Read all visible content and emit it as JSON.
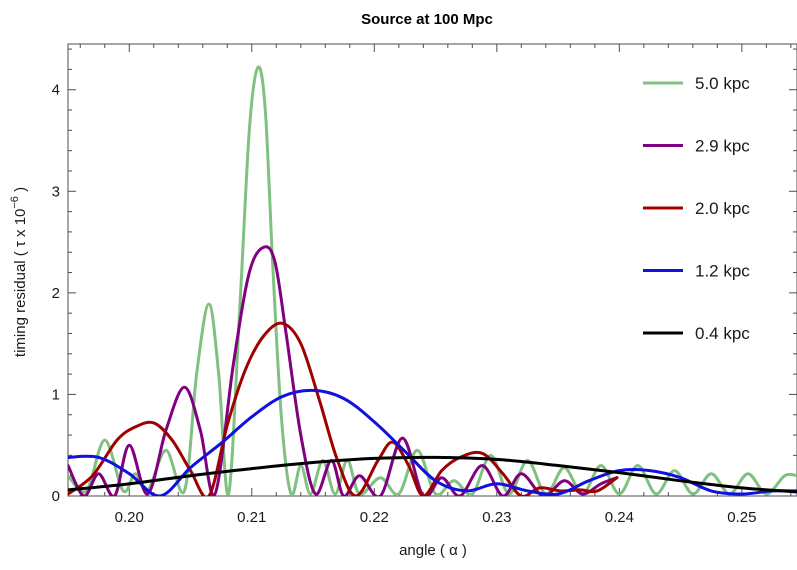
{
  "chart_data": {
    "type": "line",
    "title": "Source at 100 Mpc",
    "xlabel": "angle  ( α )",
    "ylabel": "timing residual  ( τ x 10",
    "ylabel_exponent": "−6",
    "ylabel_close": " )",
    "xlim": [
      0.195,
      0.2545
    ],
    "ylim": [
      0,
      4.45
    ],
    "x_ticks": [
      0.2,
      0.21,
      0.22,
      0.23,
      0.24,
      0.25
    ],
    "x_tick_labels": [
      "0.20",
      "0.21",
      "0.22",
      "0.23",
      "0.24",
      "0.25"
    ],
    "y_ticks": [
      0,
      1,
      2,
      3,
      4
    ],
    "y_tick_labels": [
      "0",
      "1",
      "2",
      "3",
      "4"
    ],
    "grid": false,
    "legend_position": "top-right",
    "series": [
      {
        "name": "5.0 kpc",
        "color": "#80c080",
        "x": [
          0.195,
          0.1965,
          0.198,
          0.1995,
          0.2005,
          0.2015,
          0.203,
          0.2045,
          0.2055,
          0.2065,
          0.2073,
          0.2081,
          0.209,
          0.2098,
          0.2105,
          0.2111,
          0.2117,
          0.2124,
          0.2132,
          0.214,
          0.2148,
          0.2158,
          0.2168,
          0.2178,
          0.2188,
          0.2205,
          0.222,
          0.2235,
          0.225,
          0.2265,
          0.228,
          0.2295,
          0.231,
          0.2325,
          0.234,
          0.2355,
          0.237,
          0.2385,
          0.24,
          0.2415,
          0.243,
          0.2445,
          0.246,
          0.2475,
          0.249,
          0.2505,
          0.252,
          0.2535,
          0.2545
        ],
        "y": [
          0.2,
          0.05,
          0.55,
          0.05,
          0.22,
          0.05,
          0.45,
          0.05,
          1.2,
          1.89,
          1.2,
          0.02,
          1.8,
          3.6,
          4.22,
          3.8,
          2.3,
          0.8,
          0.02,
          0.3,
          0.02,
          0.35,
          0.02,
          0.35,
          0.02,
          0.18,
          0.02,
          0.45,
          0.02,
          0.15,
          0.02,
          0.4,
          0.02,
          0.35,
          0.02,
          0.28,
          0.02,
          0.3,
          0.02,
          0.3,
          0.02,
          0.25,
          0.02,
          0.22,
          0.02,
          0.22,
          0.02,
          0.2,
          0.2
        ]
      },
      {
        "name": "2.9 kpc",
        "color": "#800080",
        "x": [
          0.195,
          0.1963,
          0.1975,
          0.1988,
          0.2,
          0.2015,
          0.203,
          0.2045,
          0.2058,
          0.207,
          0.2085,
          0.2098,
          0.211,
          0.2119,
          0.2128,
          0.214,
          0.2152,
          0.2165,
          0.2175,
          0.2188,
          0.2205,
          0.2223,
          0.224,
          0.2255,
          0.227,
          0.2288,
          0.2305,
          0.232,
          0.2338,
          0.2355,
          0.237,
          0.2385,
          0.2398
        ],
        "y": [
          0.3,
          0.0,
          0.22,
          0.0,
          0.5,
          0.02,
          0.65,
          1.07,
          0.65,
          0.02,
          1.3,
          2.2,
          2.45,
          2.3,
          1.6,
          0.6,
          0.02,
          0.35,
          0.0,
          0.2,
          0.0,
          0.57,
          0.0,
          0.18,
          0.0,
          0.3,
          0.0,
          0.22,
          0.0,
          0.15,
          0.02,
          0.12,
          0.18
        ]
      },
      {
        "name": "2.0 kpc",
        "color": "#a00000",
        "x": [
          0.195,
          0.197,
          0.199,
          0.2005,
          0.202,
          0.2035,
          0.205,
          0.2065,
          0.208,
          0.2095,
          0.211,
          0.2125,
          0.214,
          0.2155,
          0.217,
          0.2185,
          0.2203,
          0.2215,
          0.2228,
          0.224,
          0.2255,
          0.227,
          0.2288,
          0.2305,
          0.232,
          0.2335,
          0.2352,
          0.2368,
          0.2382,
          0.2398
        ],
        "y": [
          0.02,
          0.2,
          0.55,
          0.68,
          0.72,
          0.55,
          0.25,
          0.0,
          0.7,
          1.25,
          1.58,
          1.7,
          1.5,
          0.95,
          0.35,
          0.0,
          0.35,
          0.53,
          0.3,
          0.0,
          0.25,
          0.38,
          0.42,
          0.22,
          0.0,
          0.08,
          0.05,
          0.06,
          0.05,
          0.18
        ]
      },
      {
        "name": "1.2 kpc",
        "color": "#1010e0",
        "x": [
          0.195,
          0.1975,
          0.2,
          0.2025,
          0.205,
          0.2075,
          0.21,
          0.2125,
          0.215,
          0.2175,
          0.22,
          0.2225,
          0.225,
          0.2275,
          0.23,
          0.2325,
          0.235,
          0.2375,
          0.24,
          0.2425,
          0.245,
          0.2475,
          0.25,
          0.2525,
          0.2545
        ],
        "y": [
          0.38,
          0.38,
          0.22,
          0.0,
          0.28,
          0.52,
          0.78,
          0.98,
          1.04,
          0.96,
          0.73,
          0.44,
          0.15,
          0.05,
          0.12,
          0.05,
          0.02,
          0.15,
          0.25,
          0.25,
          0.18,
          0.05,
          0.02,
          0.05,
          0.05
        ]
      },
      {
        "name": "0.4 kpc",
        "color": "#000000",
        "x": [
          0.195,
          0.2,
          0.205,
          0.21,
          0.215,
          0.22,
          0.225,
          0.23,
          0.235,
          0.24,
          0.245,
          0.25,
          0.2545
        ],
        "y": [
          0.06,
          0.12,
          0.2,
          0.27,
          0.33,
          0.37,
          0.38,
          0.36,
          0.3,
          0.23,
          0.15,
          0.08,
          0.04
        ]
      }
    ]
  }
}
